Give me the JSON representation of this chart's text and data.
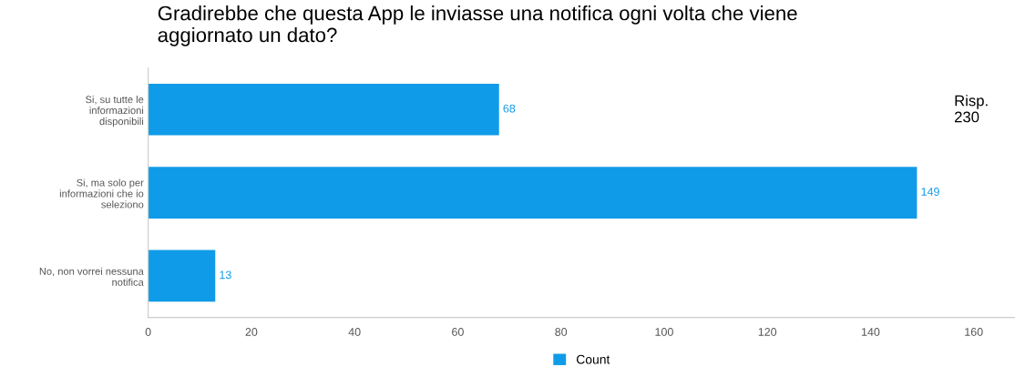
{
  "chart_data": {
    "type": "bar",
    "orientation": "horizontal",
    "title": "Gradirebbe che questa App le inviasse una notifica ogni volta che viene\naggiornato un dato?",
    "categories": [
      "Si, su tutte le\ninformazioni\ndisponibili",
      "Si, ma solo per\ninformazioni che io\nseleziono",
      "No, non vorrei nessuna\nnotifica"
    ],
    "series": [
      {
        "name": "Count",
        "color": "#0f9be8",
        "values": [
          68,
          149,
          13
        ]
      }
    ],
    "xlim": [
      0,
      168
    ],
    "xticks": [
      0,
      20,
      40,
      60,
      80,
      100,
      120,
      140,
      160
    ],
    "data_labels": true,
    "grid": false,
    "legend": "bottom",
    "annotations": [
      "Risp.\n230"
    ]
  }
}
